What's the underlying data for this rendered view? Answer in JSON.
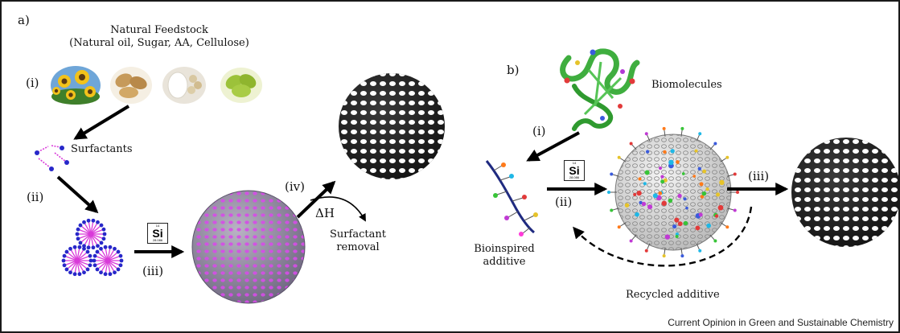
{
  "panel_a": {
    "label": "a)",
    "feedstock_title": "Natural Feedstock",
    "feedstock_subtitle": "(Natural oil, Sugar, AA, Cellulose)",
    "step_i": "(i)",
    "surfactants": "Surfactants",
    "step_ii": "(ii)",
    "step_iii": "(iii)",
    "step_iv": "(iv)",
    "delta_h": "ΔH",
    "surfactant_removal_1": "Surfactant",
    "surfactant_removal_2": "removal",
    "si_symbol": "Si",
    "si_number": "14",
    "si_weight": "28.086"
  },
  "panel_b": {
    "label": "b)",
    "biomolecules": "Biomolecules",
    "step_i": "(i)",
    "step_ii": "(ii)",
    "step_iii": "(iii)",
    "bioinspired_1": "Bioinspired",
    "bioinspired_2": "additive",
    "recycled": "Recycled additive",
    "si_symbol": "Si",
    "si_number": "14",
    "si_weight": "28.086"
  },
  "credit": "Current Opinion in Green and Sustainable Chemistry",
  "colors": {
    "sphere_dark": "#2b2b2b",
    "pore_white": "#ffffff",
    "sphere_template": "#9b93a8",
    "pore_purple": "#c94ce0",
    "micelle_blue": "#2727c9",
    "micelle_pink": "#d93ad9",
    "protein_green": "#3fae3f",
    "arrow": "#000000"
  }
}
